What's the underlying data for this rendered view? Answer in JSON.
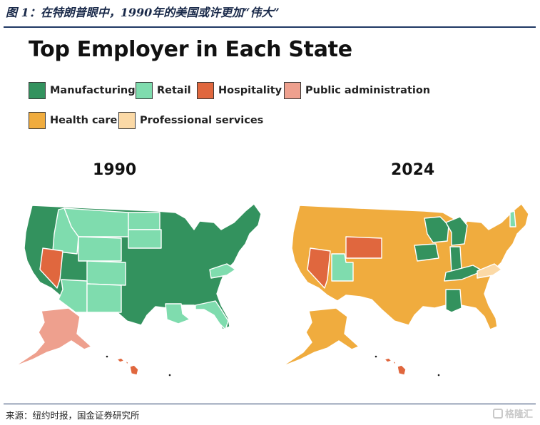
{
  "figure_caption": "图 1：在特朗普眼中，1990年的美国或许更加“伟大”",
  "title": "Top Employer in Each State",
  "legend": [
    {
      "label": "Manufacturing",
      "color": "#33925e"
    },
    {
      "label": "Retail",
      "color": "#7fdcae"
    },
    {
      "label": "Hospitality",
      "color": "#e0673e"
    },
    {
      "label": "Public administration",
      "color": "#eea08e"
    },
    {
      "label": "Health care",
      "color": "#f0ac3e"
    },
    {
      "label": "Professional services",
      "color": "#fbd9a6"
    }
  ],
  "maps": [
    {
      "year": "1990"
    },
    {
      "year": "2024"
    }
  ],
  "source": "来源：纽约时报，国金证券研究所",
  "watermark": "格隆汇",
  "map_data": {
    "1990": {
      "Manufacturing": [
        "WA",
        "OR",
        "CA",
        "UT",
        "NE",
        "KS",
        "OK",
        "TX",
        "MN",
        "IA",
        "MO",
        "AR",
        "WI",
        "IL",
        "MI",
        "IN",
        "OH",
        "KY",
        "TN",
        "MS",
        "AL",
        "GA",
        "SC",
        "NC",
        "PA",
        "NY",
        "VT",
        "NH",
        "ME",
        "MA",
        "CT",
        "RI",
        "NJ",
        "DE",
        "MD",
        "WV"
      ],
      "Retail": [
        "ID",
        "MT",
        "WY",
        "CO",
        "AZ",
        "NM",
        "ND",
        "SD",
        "LA",
        "FL",
        "VA"
      ],
      "Hospitality": [
        "NV",
        "HI"
      ],
      "Public administration": [
        "AK"
      ]
    },
    "2024": {
      "Manufacturing": [
        "WI",
        "MI",
        "IA",
        "IN",
        "KY",
        "AL"
      ],
      "Retail": [
        "UT",
        "NH"
      ],
      "Hospitality": [
        "NV",
        "WY",
        "HI"
      ],
      "Professional services": [
        "VA"
      ],
      "Health care": [
        "all other states"
      ]
    }
  }
}
